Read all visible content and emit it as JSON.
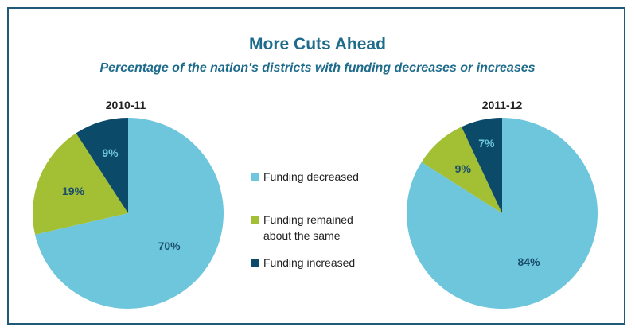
{
  "title": "More Cuts Ahead",
  "subtitle": "Percentage of the nation's districts with funding decreases or increases",
  "chart_data": [
    {
      "type": "pie",
      "title": "2010-11",
      "categories": [
        "Funding decreased",
        "Funding remained about the same",
        "Funding increased"
      ],
      "values": [
        70,
        19,
        9
      ],
      "labels": [
        "70%",
        "19%",
        "9%"
      ]
    },
    {
      "type": "pie",
      "title": "2011-12",
      "categories": [
        "Funding decreased",
        "Funding remained about the same",
        "Funding increased"
      ],
      "values": [
        84,
        9,
        7
      ],
      "labels": [
        "84%",
        "9%",
        "7%"
      ]
    }
  ],
  "legend": [
    {
      "label": "Funding decreased",
      "color": "#6ec6dc"
    },
    {
      "label": "Funding remained about the same",
      "color": "#a3bf34"
    },
    {
      "label": "Funding increased",
      "color": "#0c4a6a"
    }
  ],
  "colors": {
    "decreased": "#6ec6dc",
    "same": "#a3bf34",
    "increased": "#0c4a6a",
    "label_on_light": "#1a4e6a",
    "label_on_mid": "#1a4e6a",
    "label_on_dark": "#6ec6dc",
    "title": "#1e6b8c"
  }
}
